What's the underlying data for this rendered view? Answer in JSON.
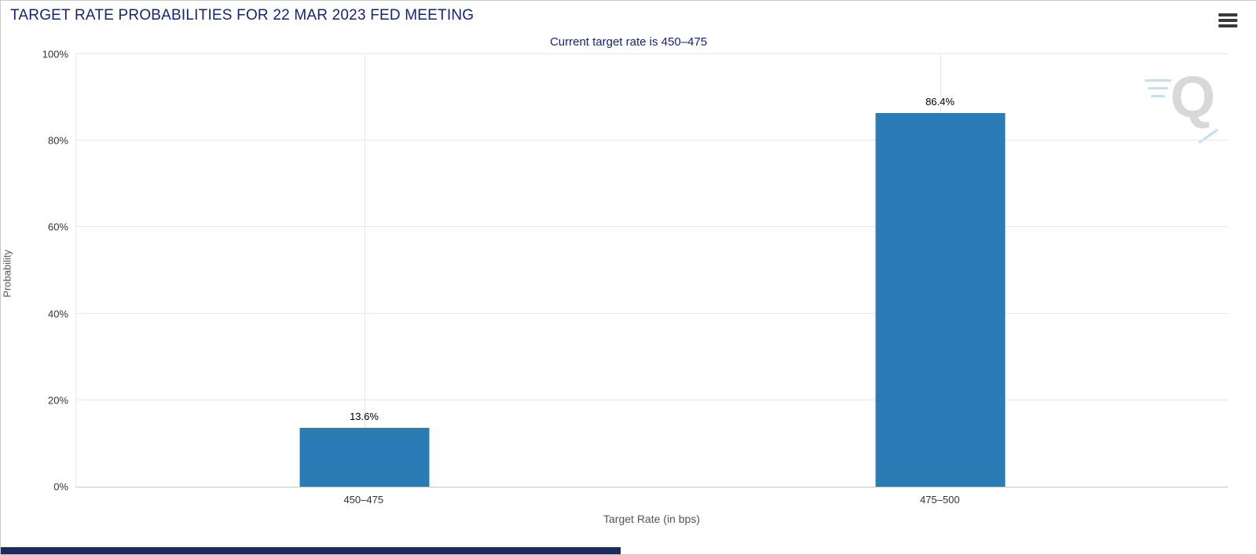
{
  "header": {
    "title": "TARGET RATE PROBABILITIES FOR 22 MAR 2023 FED MEETING"
  },
  "chart_data": {
    "type": "bar",
    "title": "TARGET RATE PROBABILITIES FOR 22 MAR 2023 FED MEETING",
    "subtitle": "Current target rate is 450–475",
    "categories": [
      "450–475",
      "475–500"
    ],
    "values": [
      13.6,
      86.4
    ],
    "value_labels": [
      "13.6%",
      "86.4%"
    ],
    "xlabel": "Target Rate (in bps)",
    "ylabel": "Probability",
    "ylim": [
      0,
      100
    ],
    "yticks": [
      0,
      20,
      40,
      60,
      80,
      100
    ],
    "ytick_labels": [
      "0%",
      "20%",
      "40%",
      "60%",
      "80%",
      "100%"
    ],
    "grid": true,
    "legend": "none",
    "bar_color": "#2b7cb5",
    "watermark_letter": "Q"
  }
}
